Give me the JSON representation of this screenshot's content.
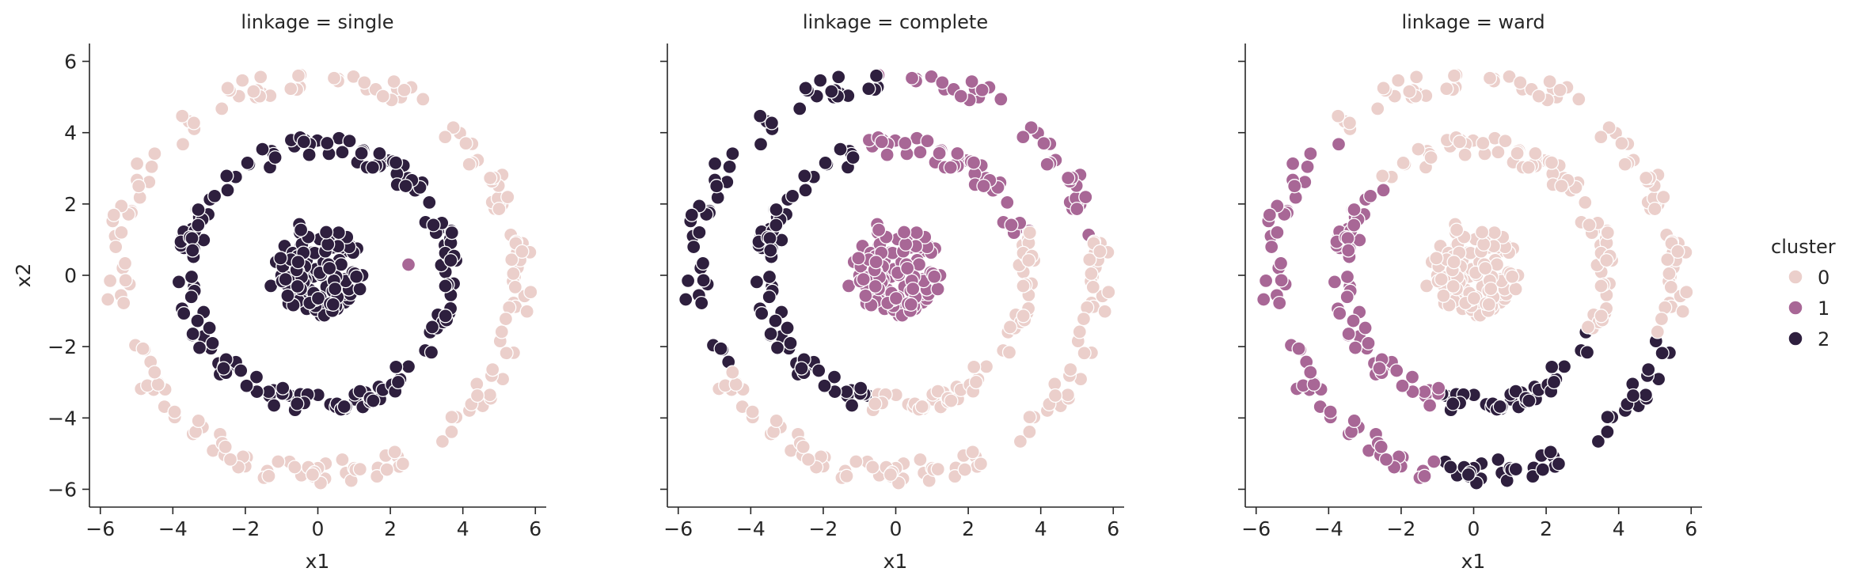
{
  "chart_data": {
    "type": "scatter",
    "hue_key": "cluster",
    "legend": {
      "title": "cluster",
      "placement": "right",
      "entries": [
        {
          "label": "0",
          "color": "#ebcfcb"
        },
        {
          "label": "1",
          "color": "#a86796"
        },
        {
          "label": "2",
          "color": "#2e1f3e"
        }
      ]
    },
    "xlim": [
      -6.3,
      6.3
    ],
    "ylim": [
      -6.5,
      6.5
    ],
    "x_ticks": [
      "−6",
      "−4",
      "−2",
      "0",
      "2",
      "4",
      "6"
    ],
    "y_ticks": [
      "−6",
      "−4",
      "−2",
      "0",
      "2",
      "4",
      "6"
    ],
    "xlabel": "x1",
    "ylabel": "x2",
    "rings": [
      {
        "name": "inner",
        "radius_min": 0,
        "radius_max": 1.6,
        "count": 110
      },
      {
        "name": "middle",
        "radius_min": 3.3,
        "radius_max": 3.9,
        "count": 170
      },
      {
        "name": "outer",
        "radius_min": 5.2,
        "radius_max": 5.9,
        "count": 180
      }
    ],
    "panels": [
      {
        "title": "linkage = single",
        "assignments": {
          "inner": [
            {
              "cluster": 2
            }
          ],
          "middle": [
            {
              "cluster": 2
            }
          ],
          "outer": [
            {
              "cluster": 0
            }
          ]
        },
        "outliers": [
          {
            "x": 2.5,
            "y": 0.3,
            "cluster": 1
          }
        ]
      },
      {
        "title": "linkage = complete",
        "assignments": {
          "inner": [
            {
              "cluster": 1
            }
          ],
          "middle": [
            {
              "from_deg": 18,
              "to_deg": 105,
              "cluster": 1
            },
            {
              "from_deg": 105,
              "to_deg": 260,
              "cluster": 2
            },
            {
              "from_deg": 260,
              "to_deg": 378,
              "cluster": 0
            }
          ],
          "outer": [
            {
              "from_deg": 10,
              "to_deg": 95,
              "cluster": 1
            },
            {
              "from_deg": 95,
              "to_deg": 210,
              "cluster": 2
            },
            {
              "from_deg": 210,
              "to_deg": 370,
              "cluster": 0
            }
          ]
        },
        "outliers": []
      },
      {
        "title": "linkage = ward",
        "assignments": {
          "inner": [
            {
              "cluster": 0
            }
          ],
          "middle": [
            {
              "from_deg": -25,
              "to_deg": 135,
              "cluster": 0
            },
            {
              "from_deg": 135,
              "to_deg": 255,
              "cluster": 1
            },
            {
              "from_deg": 255,
              "to_deg": 335,
              "cluster": 2
            }
          ],
          "outer": [
            {
              "from_deg": -20,
              "to_deg": 135,
              "cluster": 0
            },
            {
              "from_deg": 135,
              "to_deg": 260,
              "cluster": 1
            },
            {
              "from_deg": 260,
              "to_deg": 340,
              "cluster": 2
            }
          ]
        },
        "outliers": []
      }
    ]
  }
}
